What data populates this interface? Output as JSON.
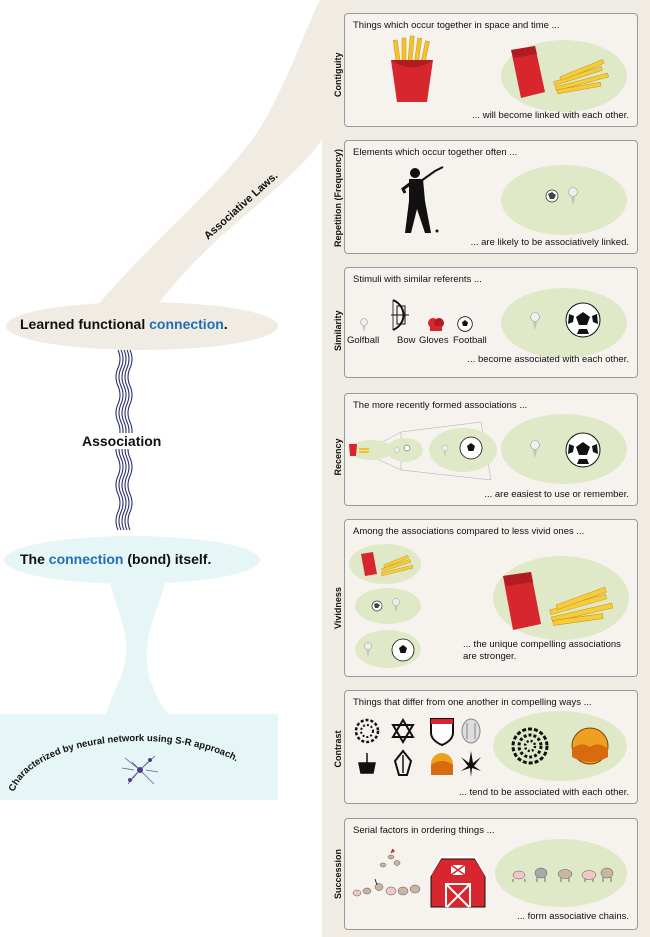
{
  "colors": {
    "accent": "#1e6fb8",
    "oval": "#dfe9c8",
    "beige": "#f1ece3",
    "cyan": "#e6f5f5"
  },
  "left": {
    "associative_laws": "Associative Laws.",
    "learned_prefix": "Learned functional ",
    "learned_highlight": "connection",
    "learned_suffix": ".",
    "association": "Association",
    "bond_prefix": "The ",
    "bond_highlight": "connection",
    "bond_suffix": " (bond) itself.",
    "neural": "Characterized by neural network using S-R approach."
  },
  "panels": [
    {
      "label": "Contiguity",
      "top": "Things which occur together in space and time ...",
      "bottom": "... will become linked with each other."
    },
    {
      "label": "Repetition (Frequency)",
      "top": "Elements which occur together often ...",
      "bottom": "... are likely to be associatively linked."
    },
    {
      "label": "Similarity",
      "top": "Stimuli with similar referents ...",
      "bottom": "... become associated with each other.",
      "items": [
        "Golfball",
        "Bow",
        "Gloves",
        "Football"
      ]
    },
    {
      "label": "Recency",
      "top": "The more recently formed associations ...",
      "bottom": "... are easiest to use or remember."
    },
    {
      "label": "Vividness",
      "top": "Among the associations compared to less vivid ones ...",
      "bottom_line1": "... the unique compelling associations",
      "bottom_line2": "are stronger."
    },
    {
      "label": "Contrast",
      "top": "Things that differ from one another in compelling ways ...",
      "bottom": "... tend to be associated with each other."
    },
    {
      "label": "Succession",
      "top": "Serial factors in ordering things ...",
      "bottom": "... form associative chains."
    }
  ],
  "icons": [
    "fries-icon",
    "golfer-icon",
    "golfball-icon",
    "football-icon",
    "bow-icon",
    "gloves-icon",
    "barn-icon",
    "animal-icon",
    "neuron-icon"
  ]
}
